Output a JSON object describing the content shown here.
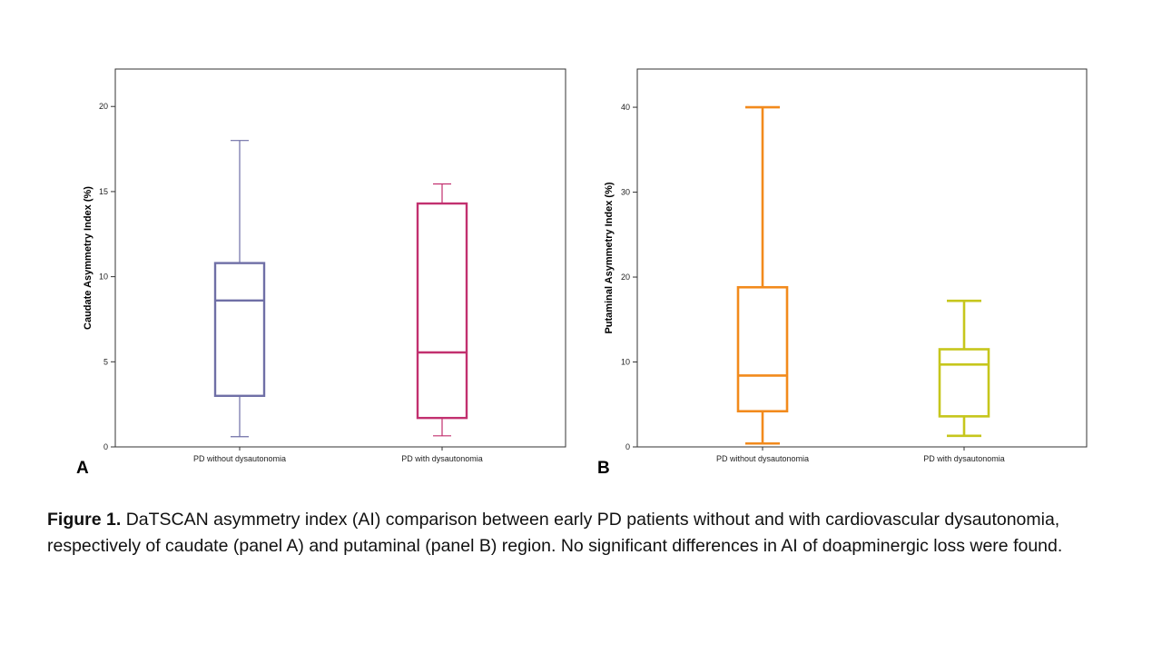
{
  "caption": {
    "label": "Figure 1.",
    "text": " DaTSCAN asymmetry index (AI) comparison between early PD patients without and with cardiovascular dysautonomia, respectively of caudate (panel A) and putaminal (panel B) region. No significant differences in AI of doapminergic loss were found."
  },
  "chart_data": [
    {
      "type": "box",
      "panel": "A",
      "ylabel": "Caudate Asymmetry Index (%)",
      "xlabel": "",
      "ylim": [
        0,
        22.2
      ],
      "yticks": [
        0,
        5,
        10,
        15,
        20
      ],
      "categories": [
        "PD without dysautonomia",
        "PD with dysautonomia"
      ],
      "series": [
        {
          "name": "PD without dysautonomia",
          "min": 0.6,
          "q1": 3.0,
          "median": 8.6,
          "q3": 10.8,
          "max": 18.0,
          "color": "#6f6fa6"
        },
        {
          "name": "PD with dysautonomia",
          "min": 0.65,
          "q1": 1.7,
          "median": 5.55,
          "q3": 14.3,
          "max": 15.45,
          "color": "#c2306f"
        }
      ]
    },
    {
      "type": "box",
      "panel": "B",
      "ylabel": "Putaminal Asymmetry Index (%)",
      "xlabel": "",
      "ylim": [
        0,
        44.5
      ],
      "yticks": [
        0,
        10,
        20,
        30,
        40
      ],
      "categories": [
        "PD without dysautonomia",
        "PD with dysautonomia"
      ],
      "series": [
        {
          "name": "PD without dysautonomia",
          "min": 0.4,
          "q1": 4.2,
          "median": 8.4,
          "q3": 18.8,
          "max": 40.0,
          "color": "#f28a1c"
        },
        {
          "name": "PD with dysautonomia",
          "min": 1.3,
          "q1": 3.6,
          "median": 9.7,
          "q3": 11.5,
          "max": 17.2,
          "color": "#c6c61c"
        }
      ]
    }
  ]
}
